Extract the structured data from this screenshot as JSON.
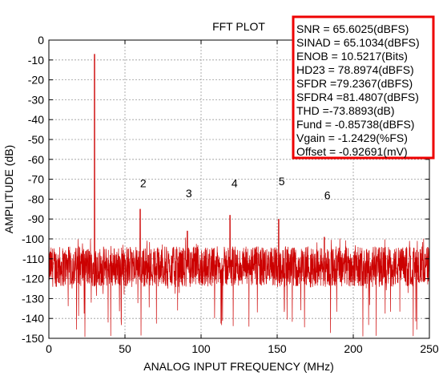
{
  "chart_data": {
    "type": "line",
    "title": "FFT PLOT",
    "xlabel": "ANALOG INPUT FREQUENCY (MHz)",
    "ylabel": "AMPLITUDE (dB)",
    "xlim": [
      0,
      250
    ],
    "ylim": [
      -150,
      0
    ],
    "x_ticks": [
      0,
      50,
      100,
      150,
      200,
      250
    ],
    "y_ticks": [
      0,
      -10,
      -20,
      -30,
      -40,
      -50,
      -60,
      -70,
      -80,
      -90,
      -100,
      -110,
      -120,
      -130,
      -140,
      -150
    ],
    "grid": "dotted",
    "series_color": "#cc0000",
    "noise_floor_band": [
      -126,
      -102
    ],
    "peaks": [
      {
        "x": 30,
        "y": -7
      },
      {
        "x": 60,
        "y": -85
      },
      {
        "x": 91,
        "y": -96
      },
      {
        "x": 119,
        "y": -88
      },
      {
        "x": 151,
        "y": -90
      },
      {
        "x": 181,
        "y": -99
      }
    ],
    "harmonic_labels": [
      {
        "text": "2",
        "x": 62,
        "y": -74
      },
      {
        "text": "3",
        "x": 92,
        "y": -79
      },
      {
        "text": "4",
        "x": 122,
        "y": -74
      },
      {
        "text": "5",
        "x": 153,
        "y": -73
      },
      {
        "text": "6",
        "x": 183,
        "y": -80
      }
    ],
    "stats_box": {
      "border_color": "#ee0000",
      "lines": [
        "SNR = 65.6025(dBFS)",
        "SINAD = 65.1034(dBFS)",
        "ENOB = 10.5217(Bits)",
        "HD23 = 78.8974(dBFS)",
        "SFDR =79.2367(dBFS)",
        "SFDR4 =81.4807(dBFS)",
        "THD =-73.8893(dB)",
        "Fund = -0.85738(dBFS)",
        "Vgain = -1.2429(%FS)",
        "Offset = -0.92691(mV)"
      ]
    }
  }
}
